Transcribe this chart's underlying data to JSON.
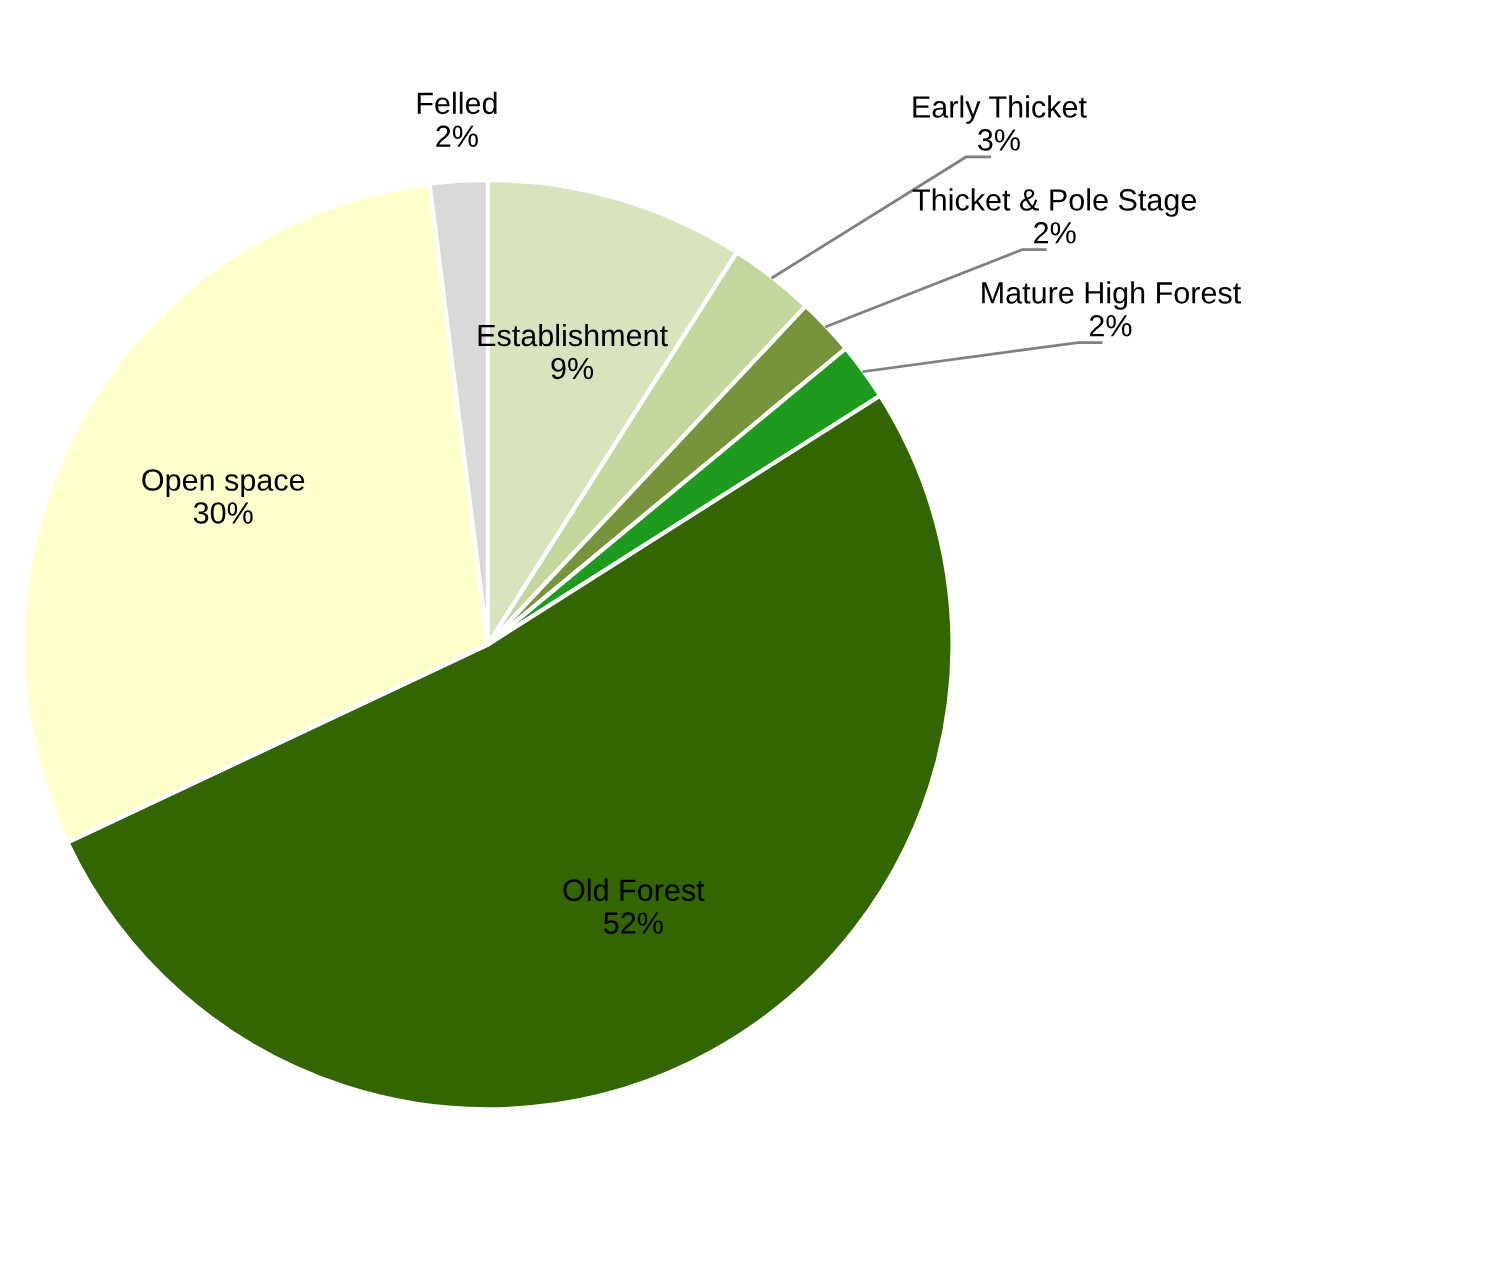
{
  "chart_data": {
    "type": "pie",
    "categories": [
      "Establishment",
      "Early Thicket",
      "Thicket & Pole Stage",
      "Mature High Forest",
      "Old Forest",
      "Open space",
      "Felled"
    ],
    "values": [
      9,
      3,
      2,
      2,
      52,
      30,
      2
    ],
    "value_labels": [
      "9%",
      "3%",
      "2%",
      "2%",
      "52%",
      "30%",
      "2%"
    ],
    "colors": [
      "#d7e4bd",
      "#c3d69b",
      "#77933c",
      "#1e9a1e",
      "#336600",
      "#ffffcc",
      "#d9d9d9"
    ],
    "legend": false
  }
}
